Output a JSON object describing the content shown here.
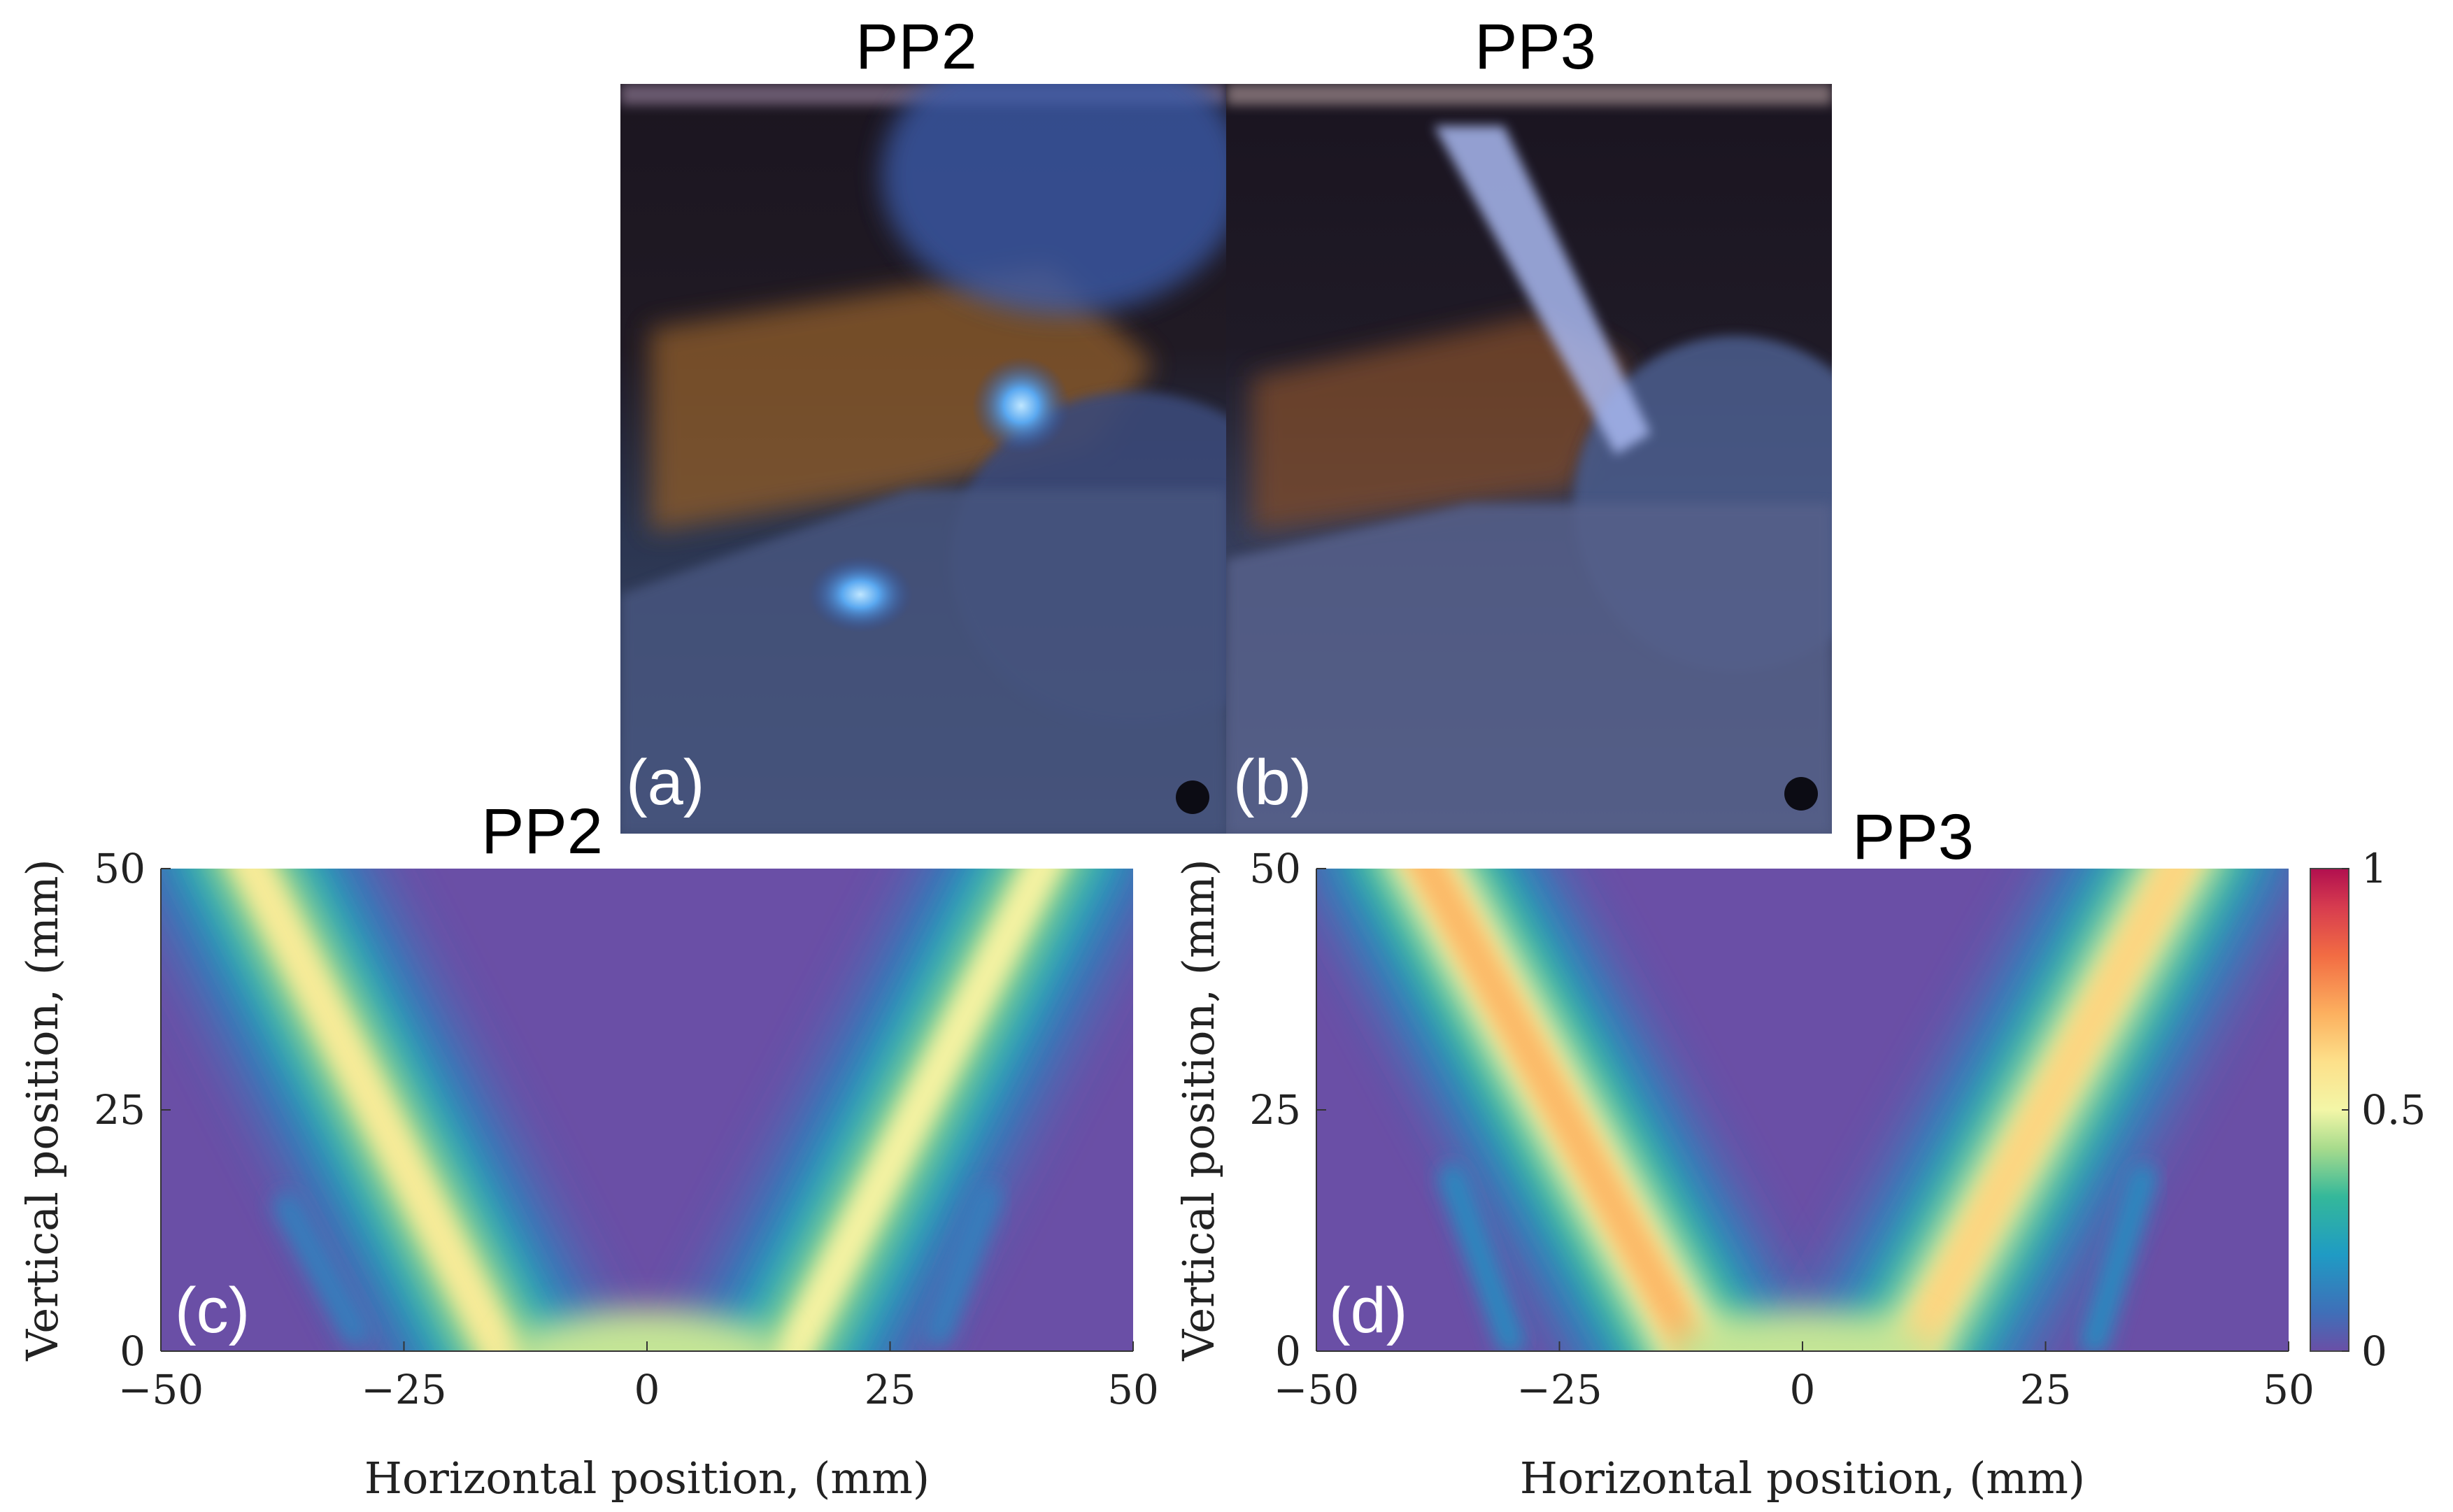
{
  "photos": {
    "left": {
      "title": "PP2",
      "panel": "(a)"
    },
    "right": {
      "title": "PP3",
      "panel": "(b)"
    }
  },
  "chart_data": [
    {
      "type": "heatmap",
      "panel": "(c)",
      "title": "PP2",
      "xlabel": "Horizontal position, (mm)",
      "ylabel": "Vertical position, (mm)",
      "xlim": [
        -50,
        50
      ],
      "ylim": [
        0,
        50
      ],
      "xticks": [
        -50,
        -25,
        0,
        25,
        50
      ],
      "yticks": [
        0,
        25,
        50
      ],
      "xtick_labels": [
        "−50",
        "−25",
        "0",
        "25",
        "50"
      ],
      "ytick_labels": [
        "0",
        "25",
        "50"
      ],
      "description_values": {
        "structure": "V-shaped flame, two branches meeting near x=0 at y=0",
        "branches": [
          {
            "base": [
              -14,
              0
            ],
            "top": [
              -42,
              50
            ],
            "peak_intensity": 0.55
          },
          {
            "base": [
              14,
              0
            ],
            "top": [
              42,
              50
            ],
            "peak_intensity": 0.52
          }
        ],
        "minor_streaks": [
          {
            "base": [
              -30,
              2
            ],
            "top": [
              -37,
              15
            ],
            "peak_intensity": 0.12
          },
          {
            "base": [
              30,
              2
            ],
            "top": [
              35,
              16
            ],
            "peak_intensity": 0.12
          }
        ]
      }
    },
    {
      "type": "heatmap",
      "panel": "(d)",
      "title": "PP3",
      "xlabel": "Horizontal position, (mm)",
      "ylabel": "Vertical position, (mm)",
      "xlim": [
        -50,
        50
      ],
      "ylim": [
        0,
        50
      ],
      "xticks": [
        -50,
        -25,
        0,
        25,
        50
      ],
      "yticks": [
        0,
        25,
        50
      ],
      "xtick_labels": [
        "−50",
        "−25",
        "0",
        "25",
        "50"
      ],
      "ytick_labels": [
        "0",
        "25",
        "50"
      ],
      "colorbar": {
        "min": 0,
        "max": 1,
        "ticks": [
          0,
          0.5,
          1
        ],
        "tick_labels": [
          "0",
          "0.5",
          "1"
        ],
        "colormap": "spectral"
      },
      "description_values": {
        "structure": "V-shaped flame, two branches meeting near x=0 at y=0",
        "branches": [
          {
            "base": [
              -10,
              0
            ],
            "top": [
              -40,
              50
            ],
            "peak_intensity": 0.68
          },
          {
            "base": [
              10,
              0
            ],
            "top": [
              40,
              50
            ],
            "peak_intensity": 0.62
          }
        ],
        "minor_streaks": [
          {
            "base": [
              -30,
              1
            ],
            "top": [
              -36,
              18
            ],
            "peak_intensity": 0.15
          },
          {
            "base": [
              30,
              1
            ],
            "top": [
              35,
              18
            ],
            "peak_intensity": 0.15
          }
        ]
      }
    }
  ]
}
